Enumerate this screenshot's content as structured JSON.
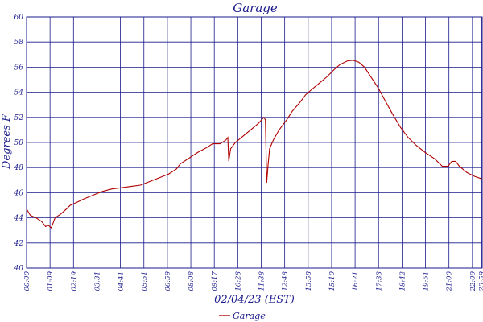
{
  "chart_data": {
    "type": "line",
    "title": "Garage",
    "xlabel": "02/04/23 (EST)",
    "ylabel": "Degrees F",
    "ylim": [
      40,
      60
    ],
    "y_ticks": [
      "40",
      "42",
      "44",
      "46",
      "48",
      "50",
      "52",
      "54",
      "56",
      "58",
      "60"
    ],
    "x_ticks": [
      "00:00",
      "01:09",
      "02:19",
      "03:31",
      "04:41",
      "05:51",
      "06:59",
      "08:08",
      "09:17",
      "10:28",
      "11:38",
      "12:48",
      "13:58",
      "15:10",
      "16:21",
      "17:33",
      "18:42",
      "19:51",
      "21:00",
      "22:09",
      "23:18",
      "23:59"
    ],
    "grid": true,
    "legend_position": "bottom-center",
    "colors": {
      "series": "#b00000",
      "axis": "#1a1a8c"
    },
    "series": [
      {
        "name": "Garage",
        "points": [
          [
            0.0,
            44.7
          ],
          [
            0.2,
            44.2
          ],
          [
            0.5,
            44.0
          ],
          [
            0.8,
            43.7
          ],
          [
            1.0,
            43.3
          ],
          [
            1.15,
            43.4
          ],
          [
            1.3,
            43.2
          ],
          [
            1.5,
            44.0
          ],
          [
            1.8,
            44.3
          ],
          [
            2.1,
            44.7
          ],
          [
            2.3,
            45.0
          ],
          [
            2.6,
            45.2
          ],
          [
            3.0,
            45.5
          ],
          [
            3.5,
            45.8
          ],
          [
            4.0,
            46.1
          ],
          [
            4.5,
            46.3
          ],
          [
            5.0,
            46.4
          ],
          [
            5.5,
            46.5
          ],
          [
            6.0,
            46.6
          ],
          [
            6.5,
            46.9
          ],
          [
            7.0,
            47.2
          ],
          [
            7.5,
            47.5
          ],
          [
            7.9,
            47.9
          ],
          [
            8.1,
            48.3
          ],
          [
            8.5,
            48.7
          ],
          [
            9.0,
            49.2
          ],
          [
            9.5,
            49.6
          ],
          [
            9.8,
            49.9
          ],
          [
            10.2,
            49.9
          ],
          [
            10.5,
            50.2
          ],
          [
            10.6,
            50.4
          ],
          [
            10.65,
            48.5
          ],
          [
            10.75,
            49.5
          ],
          [
            11.0,
            50.0
          ],
          [
            11.4,
            50.5
          ],
          [
            11.8,
            51.0
          ],
          [
            12.2,
            51.5
          ],
          [
            12.5,
            52.0
          ],
          [
            12.58,
            51.8
          ],
          [
            12.65,
            46.8
          ],
          [
            12.72,
            48.2
          ],
          [
            12.8,
            49.5
          ],
          [
            13.0,
            50.2
          ],
          [
            13.3,
            51.0
          ],
          [
            13.7,
            51.8
          ],
          [
            14.0,
            52.5
          ],
          [
            14.4,
            53.2
          ],
          [
            14.7,
            53.8
          ],
          [
            15.0,
            54.2
          ],
          [
            15.4,
            54.7
          ],
          [
            15.8,
            55.2
          ],
          [
            16.2,
            55.8
          ],
          [
            16.5,
            56.2
          ],
          [
            16.9,
            56.5
          ],
          [
            17.2,
            56.55
          ],
          [
            17.5,
            56.4
          ],
          [
            17.8,
            56.0
          ],
          [
            18.1,
            55.3
          ],
          [
            18.5,
            54.4
          ],
          [
            18.9,
            53.3
          ],
          [
            19.3,
            52.2
          ],
          [
            19.7,
            51.2
          ],
          [
            20.1,
            50.4
          ],
          [
            20.5,
            49.8
          ],
          [
            21.0,
            49.2
          ],
          [
            21.5,
            48.7
          ],
          [
            21.9,
            48.1
          ],
          [
            22.2,
            48.1
          ],
          [
            22.4,
            48.5
          ],
          [
            22.6,
            48.5
          ],
          [
            22.8,
            48.1
          ],
          [
            23.2,
            47.6
          ],
          [
            23.6,
            47.3
          ],
          [
            23.98,
            47.1
          ]
        ]
      }
    ]
  }
}
